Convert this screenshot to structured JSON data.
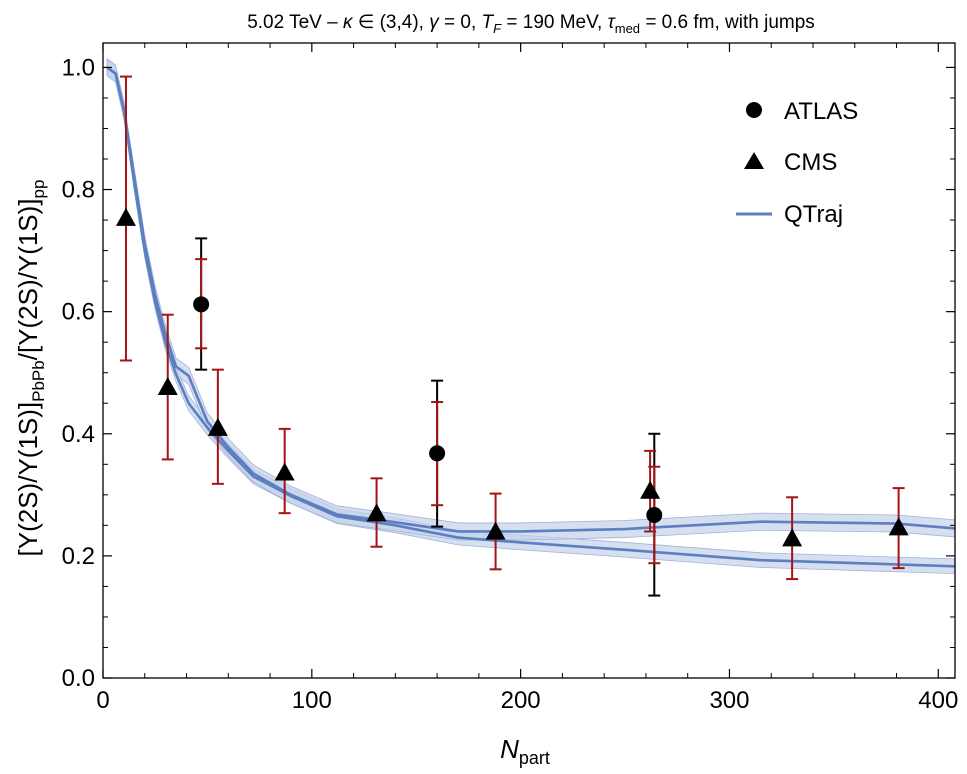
{
  "chart_data": {
    "type": "scatter",
    "title_parts": {
      "energy": "5.02 TeV",
      "dash": "–",
      "kappa_sym": "κ",
      "kappa_range": "∈ (3,4),",
      "gamma_sym": "γ",
      "gamma_val": "= 0,",
      "tf_sym": "T",
      "tf_sub": "F",
      "tf_val": "= 190 MeV,",
      "tau_sym": "τ",
      "tau_sub": "med",
      "tau_val": "= 0.6 fm, with jumps"
    },
    "xlabel": {
      "base": "N",
      "sub": "part"
    },
    "ylabel": {
      "part1": "[Υ(2S)/Υ(1S)]",
      "sub1": "PbPb",
      "part2": "/[Υ(2S)/Υ(1S)]",
      "sub2": "pp"
    },
    "xlim": [
      0,
      408
    ],
    "ylim": [
      0,
      1.04
    ],
    "x_ticks": [
      0,
      100,
      200,
      300,
      400
    ],
    "x_tick_labels": [
      "0",
      "100",
      "200",
      "300",
      "400"
    ],
    "y_ticks": [
      0.0,
      0.2,
      0.4,
      0.6,
      0.8,
      1.0
    ],
    "y_tick_labels": [
      "0.0",
      "0.2",
      "0.4",
      "0.6",
      "0.8",
      "1.0"
    ],
    "legend": {
      "placement": "top-right",
      "entries": [
        "ATLAS",
        "CMS",
        "QTraj"
      ]
    },
    "series": [
      {
        "name": "ATLAS",
        "marker": "circle",
        "points": [
          {
            "x": 47,
            "y": 0.612,
            "stat": [
              0.54,
              0.686
            ],
            "sys": [
              0.505,
              0.72
            ]
          },
          {
            "x": 160,
            "y": 0.368,
            "stat": [
              0.283,
              0.452
            ],
            "sys": [
              0.248,
              0.487
            ]
          },
          {
            "x": 264,
            "y": 0.267,
            "stat": [
              0.188,
              0.346
            ],
            "sys": [
              0.135,
              0.4
            ]
          }
        ]
      },
      {
        "name": "CMS",
        "marker": "triangle",
        "points": [
          {
            "x": 11,
            "y": 0.752,
            "err": [
              0.52,
              0.985
            ]
          },
          {
            "x": 31,
            "y": 0.475,
            "err": [
              0.358,
              0.595
            ]
          },
          {
            "x": 55,
            "y": 0.408,
            "err": [
              0.318,
              0.505
            ]
          },
          {
            "x": 87,
            "y": 0.335,
            "err": [
              0.27,
              0.408
            ]
          },
          {
            "x": 131,
            "y": 0.268,
            "err": [
              0.215,
              0.327
            ]
          },
          {
            "x": 188,
            "y": 0.238,
            "err": [
              0.178,
              0.302
            ]
          },
          {
            "x": 262,
            "y": 0.305,
            "err": [
              0.24,
              0.372
            ]
          },
          {
            "x": 330,
            "y": 0.227,
            "err": [
              0.162,
              0.296
            ]
          },
          {
            "x": 381,
            "y": 0.245,
            "err": [
              0.18,
              0.311
            ]
          }
        ]
      },
      {
        "name": "QTraj",
        "lower_curve": {
          "x": [
            2,
            6,
            10,
            15,
            20,
            25,
            30,
            35,
            41,
            50,
            60,
            72,
            90,
            112,
            140,
            170,
            200,
            250,
            315,
            380,
            408
          ],
          "y": [
            1.0,
            0.99,
            0.93,
            0.81,
            0.7,
            0.615,
            0.548,
            0.497,
            0.45,
            0.41,
            0.372,
            0.33,
            0.298,
            0.265,
            0.25,
            0.23,
            0.222,
            0.21,
            0.193,
            0.186,
            0.183
          ],
          "band": 0.012
        },
        "upper_curve": {
          "x": [
            2,
            6,
            10,
            15,
            20,
            25,
            30,
            35,
            41,
            50,
            60,
            72,
            90,
            112,
            140,
            170,
            200,
            250,
            315,
            380,
            408
          ],
          "y": [
            1.0,
            0.99,
            0.93,
            0.82,
            0.71,
            0.627,
            0.562,
            0.51,
            0.495,
            0.42,
            0.378,
            0.335,
            0.3,
            0.268,
            0.255,
            0.24,
            0.24,
            0.244,
            0.256,
            0.253,
            0.245
          ],
          "band": 0.014
        }
      }
    ],
    "colors": {
      "qtraj_line": "#5b7fc0",
      "qtraj_band": "#c5d2ea",
      "cms_err": "#a51414",
      "atlas_sys": "#000000",
      "atlas_stat": "#a51414",
      "marker": "#000000"
    }
  }
}
